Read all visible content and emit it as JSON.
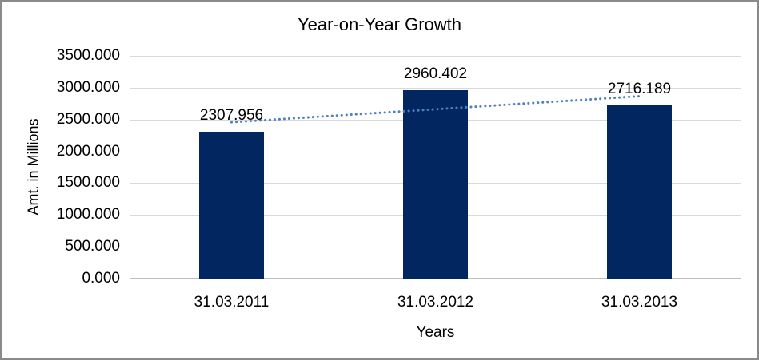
{
  "chart_data": {
    "type": "bar",
    "title": "Year-on-Year Growth",
    "xlabel": "Years",
    "ylabel": "Amt. in Millions",
    "categories": [
      "31.03.2011",
      "31.03.2012",
      "31.03.2013"
    ],
    "values": [
      2307.956,
      2960.402,
      2716.189
    ],
    "data_labels": [
      "2307.956",
      "2960.402",
      "2716.189"
    ],
    "y_ticks": [
      "3500.000",
      "3000.000",
      "2500.000",
      "2000.000",
      "1500.000",
      "1000.000",
      "500.000",
      "0.000"
    ],
    "ylim": [
      0,
      3500
    ],
    "grid": true,
    "legend": "none",
    "bar_color": "#02265f",
    "trendline": {
      "type": "linear",
      "style": "dotted",
      "color": "#4f81bd"
    },
    "gridline_color": "#d9d9d9",
    "axis_line_color": "#bdbdbd",
    "text_color": "#000000",
    "background": "#ffffff"
  }
}
